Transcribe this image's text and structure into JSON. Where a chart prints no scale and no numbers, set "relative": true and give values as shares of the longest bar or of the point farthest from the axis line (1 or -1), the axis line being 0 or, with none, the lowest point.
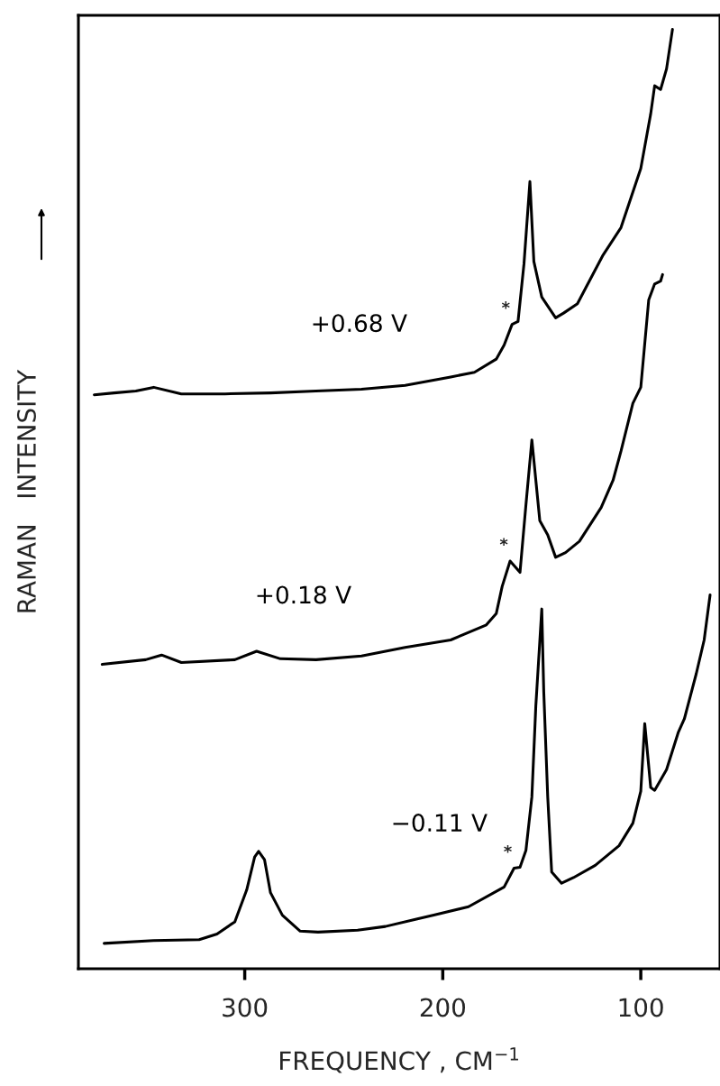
{
  "chart_data": {
    "type": "line",
    "relative": true,
    "xlabel": "FREQUENCY , CM$^{−1}$",
    "ylabel": "RAMAN   INTENSITY",
    "xlim": [
      384,
      60
    ],
    "xticks": [
      300,
      200,
      100
    ],
    "grid": false,
    "legend": false,
    "series": [
      {
        "name": "+0.68 V",
        "color": "#000000",
        "x": [
          376,
          366,
          355,
          346,
          332,
          310,
          287,
          264,
          241,
          219,
          196,
          184,
          173,
          169,
          165,
          162,
          159,
          156,
          154,
          150,
          143,
          139,
          132,
          128,
          119,
          110,
          100,
          95,
          93,
          90,
          87,
          84
        ],
        "values": [
          0.611,
          0.613,
          0.615,
          0.619,
          0.612,
          0.612,
          0.613,
          0.615,
          0.617,
          0.621,
          0.63,
          0.635,
          0.649,
          0.664,
          0.686,
          0.689,
          0.75,
          0.838,
          0.753,
          0.715,
          0.693,
          0.698,
          0.708,
          0.724,
          0.76,
          0.789,
          0.852,
          0.91,
          0.94,
          0.936,
          0.958,
          1.0
        ]
      },
      {
        "name": "+0.18 V",
        "color": "#000000",
        "x": [
          372,
          350,
          342,
          332,
          305,
          294,
          282,
          264,
          241,
          219,
          196,
          178,
          173,
          170,
          166,
          161,
          158,
          155,
          151,
          147,
          143,
          138,
          131,
          120,
          114,
          110,
          104,
          100,
          96,
          93,
          90,
          89
        ],
        "values": [
          0.324,
          0.329,
          0.334,
          0.326,
          0.329,
          0.338,
          0.33,
          0.329,
          0.333,
          0.342,
          0.35,
          0.366,
          0.378,
          0.407,
          0.434,
          0.422,
          0.494,
          0.563,
          0.477,
          0.462,
          0.438,
          0.443,
          0.455,
          0.491,
          0.52,
          0.551,
          0.602,
          0.619,
          0.712,
          0.729,
          0.732,
          0.739
        ]
      },
      {
        "name": "−0.11 V",
        "color": "#000000",
        "x": [
          371,
          346,
          323,
          314,
          305,
          299,
          295,
          293,
          290,
          287,
          281,
          272,
          263,
          243,
          229,
          205,
          187,
          169,
          164,
          161,
          158,
          155,
          153,
          150,
          149,
          147,
          145,
          140,
          134,
          123,
          111,
          104,
          100,
          98,
          95,
          93,
          87,
          81,
          78,
          72,
          68,
          65
        ],
        "values": [
          0.027,
          0.03,
          0.031,
          0.037,
          0.05,
          0.084,
          0.119,
          0.125,
          0.116,
          0.081,
          0.057,
          0.04,
          0.039,
          0.041,
          0.045,
          0.057,
          0.066,
          0.087,
          0.107,
          0.108,
          0.126,
          0.183,
          0.28,
          0.383,
          0.295,
          0.183,
          0.103,
          0.091,
          0.097,
          0.11,
          0.131,
          0.155,
          0.189,
          0.261,
          0.193,
          0.19,
          0.212,
          0.252,
          0.266,
          0.314,
          0.35,
          0.398
        ]
      }
    ],
    "annotations": [
      {
        "text": "*",
        "x": 165,
        "y": 0.686
      },
      {
        "text": "*",
        "x": 166,
        "y": 0.434
      },
      {
        "text": "*",
        "x": 164,
        "y": 0.107
      }
    ]
  }
}
